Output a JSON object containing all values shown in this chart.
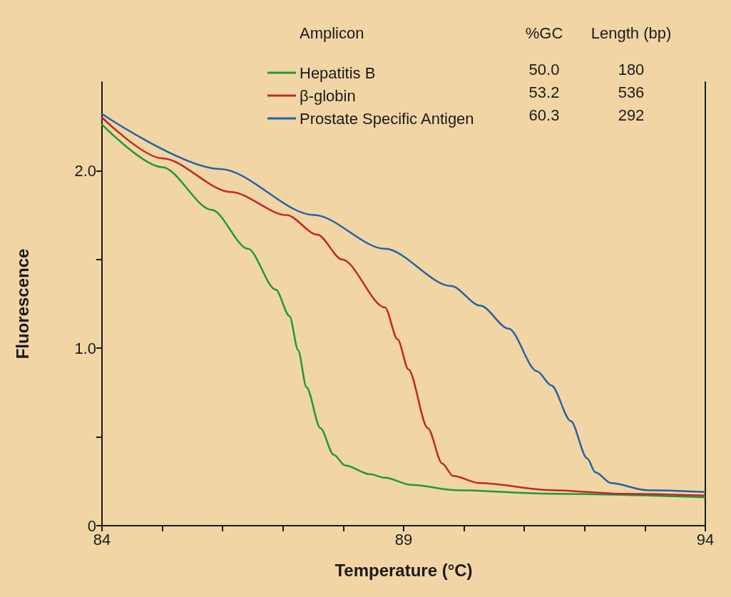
{
  "chart_data": {
    "type": "line",
    "xlabel": "Temperature (°C)",
    "ylabel": "Fluorescence",
    "legend_title": "Amplicon",
    "annotations": [
      "%GC",
      "Length (bp)",
      "50.0",
      "180",
      "53.2",
      "536",
      "60.3",
      "292"
    ],
    "xlim": [
      84,
      94
    ],
    "ylim": [
      0,
      2.5
    ],
    "xticks": [
      84,
      {
        "value": 85,
        "label": null
      },
      {
        "value": 86,
        "label": null
      },
      {
        "value": 87,
        "label": null
      },
      {
        "value": 88,
        "label": null
      },
      89,
      {
        "value": 90,
        "label": null
      },
      {
        "value": 91,
        "label": null
      },
      {
        "value": 92,
        "label": null
      },
      {
        "value": 93,
        "label": null
      },
      94
    ],
    "yticks": [
      0,
      {
        "value": 0.5,
        "label": null
      },
      {
        "value": 1,
        "label": "1.0"
      },
      {
        "value": 1.5,
        "label": null
      },
      {
        "value": 2,
        "label": "2.0"
      }
    ],
    "grid": false,
    "legend": "top",
    "marker": "none",
    "line_style": "solid",
    "series": [
      {
        "name": "Hepatitis B",
        "color": "#1a9a3c",
        "x": [
          84,
          85,
          85.82,
          86.42,
          86.88,
          87.11,
          87.25,
          87.39,
          87.62,
          87.84,
          88.03,
          88.44,
          88.69,
          89.13,
          89.87,
          91.45,
          93.99
        ],
        "values": [
          2.26,
          2.02,
          1.78,
          1.56,
          1.33,
          1.18,
          0.99,
          0.78,
          0.55,
          0.4,
          0.34,
          0.29,
          0.27,
          0.23,
          0.2,
          0.18,
          0.16
        ]
      },
      {
        "name": "β-globin",
        "color": "#c0282a",
        "x": [
          84,
          85,
          86.14,
          87.06,
          87.57,
          87.98,
          88.69,
          88.9,
          89.08,
          89.4,
          89.64,
          89.82,
          90.26,
          91.45,
          92.63,
          93.99
        ],
        "values": [
          2.3,
          2.07,
          1.88,
          1.75,
          1.64,
          1.5,
          1.23,
          1.05,
          0.88,
          0.55,
          0.35,
          0.28,
          0.24,
          0.2,
          0.18,
          0.17
        ]
      },
      {
        "name": "Prostate Specific Antigen",
        "color": "#1f64a8",
        "x": [
          84,
          85.96,
          87.52,
          88.69,
          89.79,
          90.27,
          90.74,
          91.21,
          91.45,
          91.77,
          92.04,
          92.18,
          92.44,
          93.03,
          93.99
        ],
        "values": [
          2.32,
          2.01,
          1.75,
          1.56,
          1.35,
          1.24,
          1.11,
          0.87,
          0.79,
          0.59,
          0.38,
          0.3,
          0.24,
          0.2,
          0.19
        ]
      }
    ]
  }
}
